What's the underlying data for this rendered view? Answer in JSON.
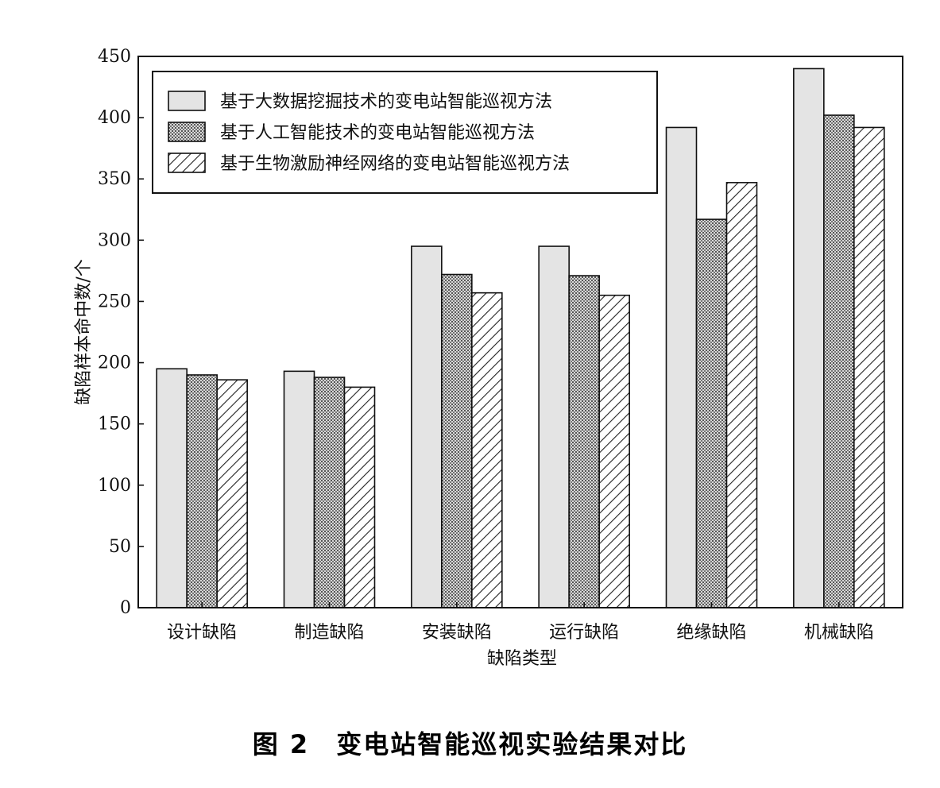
{
  "caption": "图 2　变电站智能巡视实验结果对比",
  "chart_data": {
    "type": "bar",
    "xlabel": "缺陷类型",
    "ylabel": "缺陷样本命中数/个",
    "ylim": [
      0,
      450
    ],
    "yticks": [
      0,
      50,
      100,
      150,
      200,
      250,
      300,
      350,
      400,
      450
    ],
    "grid": false,
    "legend_position": "top-left",
    "categories": [
      "设计缺陷",
      "制造缺陷",
      "安装缺陷",
      "运行缺陷",
      "绝缘缺陷",
      "机械缺陷"
    ],
    "series": [
      {
        "name": "基于大数据挖掘技术的变电站智能巡视方法",
        "pattern": "solid",
        "color": "#e4e4e4",
        "values": [
          195,
          193,
          295,
          295,
          392,
          440
        ]
      },
      {
        "name": "基于人工智能技术的变电站智能巡视方法",
        "pattern": "dots",
        "color": "#bdbdbd",
        "values": [
          190,
          188,
          272,
          271,
          317,
          402
        ]
      },
      {
        "name": "基于生物激励神经网络的变电站智能巡视方法",
        "pattern": "hatch",
        "color": "#ffffff",
        "values": [
          186,
          180,
          257,
          255,
          347,
          392
        ]
      }
    ]
  }
}
